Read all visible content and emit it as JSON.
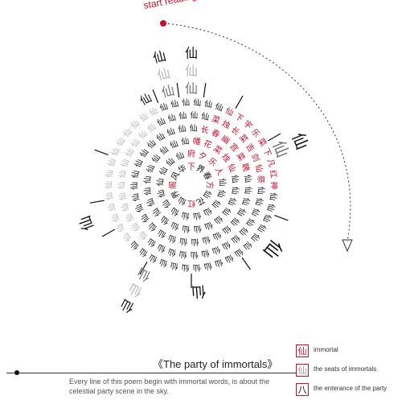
{
  "header": {
    "start_label": "start reading the red words"
  },
  "poem": {
    "center_chars": [
      "下",
      "界",
      "春",
      "方",
      "仙",
      "花",
      "红",
      "仙",
      "界",
      "阁",
      "风",
      "华"
    ],
    "red_chars": [
      "府",
      "夕",
      "乐",
      "人",
      "幡",
      "花",
      "菜",
      "烛",
      "仙",
      "长",
      "春",
      "幽",
      "宫",
      "菜",
      "聘",
      "菜",
      "烛",
      "长",
      "菜",
      "吉",
      "剑",
      "仙",
      "祭",
      "仙",
      "下",
      "宇",
      "乐",
      "菜",
      "下",
      "凡",
      "红",
      "神",
      "界",
      "仙",
      "瑶",
      "菜"
    ],
    "xian_char": "仙",
    "ray_chars": [
      "仙",
      "仙仙仙",
      "仙仙仙",
      "仙仙",
      "仙",
      "仙",
      "仙仙仙",
      "仙"
    ]
  },
  "caption": {
    "title": "《The party of immortals》",
    "description": "Every line of this poem begin with immortal words, is about the celestial party scene in the sky."
  },
  "legend": [
    {
      "symbol": "仙",
      "label": "immortal",
      "color": "#c8102e"
    },
    {
      "symbol": "仙",
      "label": "the seats of immortals",
      "color": "#999999"
    },
    {
      "symbol": "八",
      "label": "the enterance of the party",
      "color": "#111111"
    }
  ],
  "colors": {
    "red": "#c8102e",
    "black": "#111111",
    "grey": "#b8b8b8"
  }
}
